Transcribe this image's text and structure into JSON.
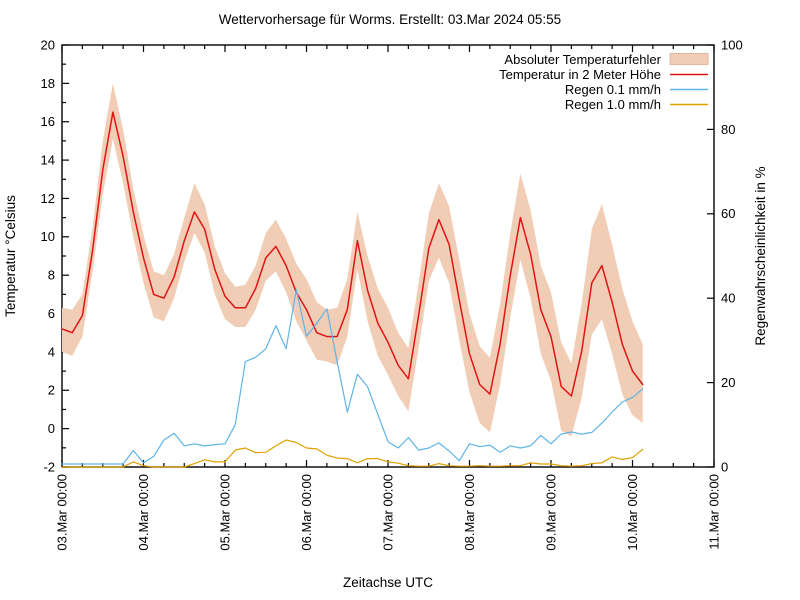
{
  "title": "Wettervorhersage für Worms. Erstellt: 03.Mar 2024 05:55",
  "chart_data": {
    "type": "line",
    "title": "Wettervorhersage für Worms. Erstellt: 03.Mar 2024 05:55",
    "xlabel": "Zeitachse UTC",
    "ylabel_left": "Temperatur °Celsius",
    "ylabel_right": "Regenwahrscheinlichkeit in %",
    "grid": false,
    "legend_position": "top-right-inside",
    "background": "#ffffff",
    "x_axis": {
      "start_label": "03.Mar 00:00",
      "end_label": "11.Mar 00:00",
      "total_hours": 192,
      "major_tick_every_hours": 24,
      "minor_tick_every_hours": 6,
      "tick_labels": [
        "03.Mar 00:00",
        "04.Mar 00:00",
        "05.Mar 00:00",
        "06.Mar 00:00",
        "07.Mar 00:00",
        "08.Mar 00:00",
        "09.Mar 00:00",
        "10.Mar 00:00",
        "11.Mar 00:00"
      ]
    },
    "y_left": {
      "min": -2,
      "max": 20,
      "ticks": [
        -2,
        0,
        2,
        4,
        6,
        8,
        10,
        12,
        14,
        16,
        18,
        20
      ],
      "minor_step": 1
    },
    "y_right": {
      "min": 0,
      "max": 100,
      "ticks": [
        0,
        20,
        40,
        60,
        80,
        100
      ]
    },
    "hours_since_start": [
      0,
      3,
      6,
      9,
      12,
      15,
      18,
      21,
      24,
      27,
      30,
      33,
      36,
      39,
      42,
      45,
      48,
      51,
      54,
      57,
      60,
      63,
      66,
      69,
      72,
      75,
      78,
      81,
      84,
      87,
      90,
      93,
      96,
      99,
      102,
      105,
      108,
      111,
      114,
      117,
      120,
      123,
      126,
      129,
      132,
      135,
      138,
      141,
      144,
      147,
      150,
      153,
      156,
      159,
      162,
      165,
      168,
      171
    ],
    "series": [
      {
        "name": "Absoluter Temperaturfehler",
        "type": "band",
        "axis": "left",
        "color": "#f1cdb6",
        "border_color": "#d9ae92",
        "upper": [
          6.3,
          6.2,
          7.0,
          10.5,
          15.0,
          18.0,
          15.6,
          12.5,
          10.1,
          8.2,
          8.0,
          9.1,
          11.0,
          12.8,
          11.7,
          9.5,
          8.1,
          7.4,
          7.5,
          8.5,
          10.2,
          10.9,
          9.9,
          8.6,
          7.8,
          6.6,
          6.2,
          6.3,
          7.8,
          11.3,
          9.0,
          7.3,
          6.3,
          5.0,
          4.2,
          7.6,
          11.2,
          12.8,
          11.6,
          8.8,
          6.0,
          4.3,
          3.7,
          6.5,
          10.2,
          13.3,
          11.4,
          8.5,
          7.1,
          4.5,
          3.4,
          6.5,
          10.4,
          11.7,
          9.6,
          7.3,
          5.6,
          4.4
        ],
        "lower": [
          4.0,
          3.8,
          4.8,
          8.2,
          12.2,
          15.1,
          12.8,
          10.0,
          7.6,
          5.8,
          5.6,
          6.8,
          8.7,
          10.2,
          9.2,
          7.0,
          5.7,
          5.3,
          5.3,
          6.2,
          7.7,
          8.2,
          7.1,
          5.6,
          4.6,
          3.6,
          3.5,
          3.3,
          4.8,
          8.3,
          5.6,
          3.8,
          2.8,
          1.7,
          0.9,
          4.2,
          7.7,
          8.9,
          7.6,
          4.6,
          1.9,
          0.3,
          -0.2,
          2.3,
          5.8,
          8.8,
          6.8,
          3.9,
          2.5,
          -0.1,
          -0.4,
          1.6,
          4.9,
          5.7,
          3.9,
          1.8,
          0.7,
          0.3
        ]
      },
      {
        "name": "Temperatur in 2 Meter Höhe",
        "type": "line",
        "axis": "left",
        "color": "#e01414",
        "values": [
          5.2,
          5.0,
          5.9,
          9.3,
          13.5,
          16.5,
          14.2,
          11.3,
          8.9,
          7.0,
          6.8,
          7.9,
          9.8,
          11.3,
          10.4,
          8.3,
          6.9,
          6.3,
          6.3,
          7.3,
          8.9,
          9.5,
          8.5,
          7.1,
          6.2,
          5.0,
          4.8,
          4.8,
          6.2,
          9.8,
          7.2,
          5.5,
          4.5,
          3.3,
          2.6,
          5.9,
          9.4,
          10.9,
          9.6,
          6.7,
          3.9,
          2.3,
          1.8,
          4.4,
          8.0,
          11.0,
          9.1,
          6.2,
          4.8,
          2.2,
          1.7,
          4.0,
          7.6,
          8.5,
          6.6,
          4.4,
          3.0,
          2.3
        ]
      },
      {
        "name": "Regen 0.1 mm/h",
        "type": "line",
        "axis": "right",
        "color": "#5fb4e6",
        "values": [
          0.7,
          0.7,
          0.7,
          0.7,
          0.7,
          0.7,
          0.7,
          3.9,
          1.0,
          2.5,
          6.4,
          8.0,
          5.0,
          5.5,
          5.0,
          5.3,
          5.5,
          10,
          25,
          26,
          28,
          33.5,
          28,
          42,
          31,
          34,
          37.5,
          25,
          13,
          22,
          19,
          12.5,
          6.0,
          4.5,
          7.0,
          4.0,
          4.5,
          5.7,
          3.8,
          1.5,
          5.5,
          4.8,
          5.2,
          3.5,
          5.0,
          4.5,
          5.0,
          7.5,
          5.5,
          7.8,
          8.3,
          7.8,
          8.2,
          10.4,
          13.0,
          15.4,
          16.5,
          18.5
        ]
      },
      {
        "name": "Regen 1.0 mm/h",
        "type": "line",
        "axis": "right",
        "color": "#dfa000",
        "values": [
          0,
          0,
          0,
          0,
          0,
          0,
          0,
          1.2,
          0.3,
          0,
          0,
          0,
          0,
          0.8,
          1.7,
          1.2,
          1.2,
          4.0,
          4.5,
          3.4,
          3.5,
          5.0,
          6.4,
          5.8,
          4.5,
          4.3,
          2.8,
          2.1,
          2.0,
          1.0,
          2.0,
          2.0,
          1.2,
          0.9,
          0.3,
          0.2,
          0.2,
          0.8,
          0.3,
          0.2,
          0.2,
          0.3,
          0.2,
          0.2,
          0.3,
          0.3,
          1.0,
          0.7,
          0.7,
          0.3,
          0.2,
          0.3,
          0.8,
          1.0,
          2.4,
          1.8,
          2.2,
          4.2
        ]
      }
    ]
  }
}
